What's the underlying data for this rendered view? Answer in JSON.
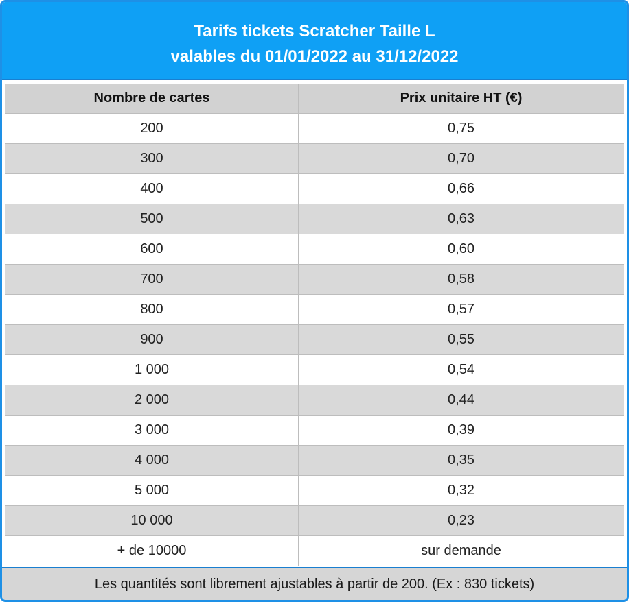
{
  "title": {
    "line1": "Tarifs tickets Scratcher Taille L",
    "line2": "valables du 01/01/2022 au 31/12/2022"
  },
  "table": {
    "headers": [
      "Nombre de cartes",
      "Prix unitaire HT (€)"
    ],
    "rows": [
      [
        "200",
        "0,75"
      ],
      [
        "300",
        "0,70"
      ],
      [
        "400",
        "0,66"
      ],
      [
        "500",
        "0,63"
      ],
      [
        "600",
        "0,60"
      ],
      [
        "700",
        "0,58"
      ],
      [
        "800",
        "0,57"
      ],
      [
        "900",
        "0,55"
      ],
      [
        "1 000",
        "0,54"
      ],
      [
        "2 000",
        "0,44"
      ],
      [
        "3 000",
        "0,39"
      ],
      [
        "4 000",
        "0,35"
      ],
      [
        "5 000",
        "0,32"
      ],
      [
        "10 000",
        "0,23"
      ],
      [
        "+ de 10000",
        "sur demande"
      ]
    ]
  },
  "footer": {
    "note": "Les quantités sont librement ajustables à partir de 200. (Ex : 830 tickets)"
  },
  "colors": {
    "title_background": "#0fa0f5",
    "border": "#1e90e6",
    "header_background": "#d2d2d2",
    "stripe": "#d9d9d9"
  }
}
